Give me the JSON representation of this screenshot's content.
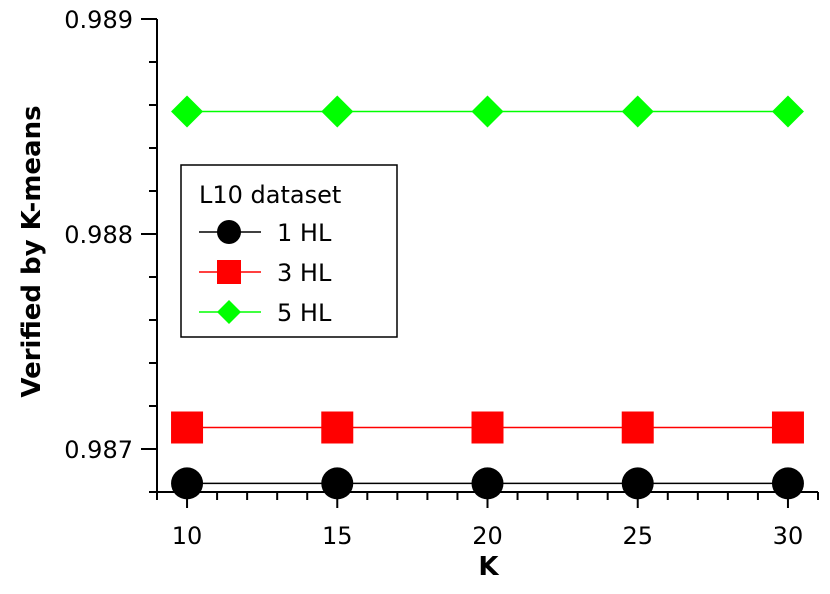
{
  "chart_data": {
    "type": "line",
    "title": "",
    "xlabel": "K",
    "ylabel": "Verified by K-means",
    "x": [
      10,
      15,
      20,
      25,
      30
    ],
    "x_ticks": [
      "10",
      "15",
      "20",
      "25",
      "30"
    ],
    "y_ticks": [
      "0.987",
      "0.988",
      "0.989"
    ],
    "xlim": [
      9,
      31
    ],
    "ylim": [
      0.9868,
      0.989
    ],
    "grid": false,
    "legend": {
      "title": "L10 dataset",
      "placement": "center-left"
    },
    "series": [
      {
        "name": "1 HL",
        "values": [
          0.98684,
          0.98684,
          0.98684,
          0.98684,
          0.98684
        ],
        "color": "#000000",
        "marker": "circle"
      },
      {
        "name": "3 HL",
        "values": [
          0.9871,
          0.9871,
          0.9871,
          0.9871,
          0.9871
        ],
        "color": "#ff0000",
        "marker": "square"
      },
      {
        "name": "5 HL",
        "values": [
          0.98857,
          0.98857,
          0.98857,
          0.98857,
          0.98857
        ],
        "color": "#00ff00",
        "marker": "diamond"
      }
    ]
  }
}
